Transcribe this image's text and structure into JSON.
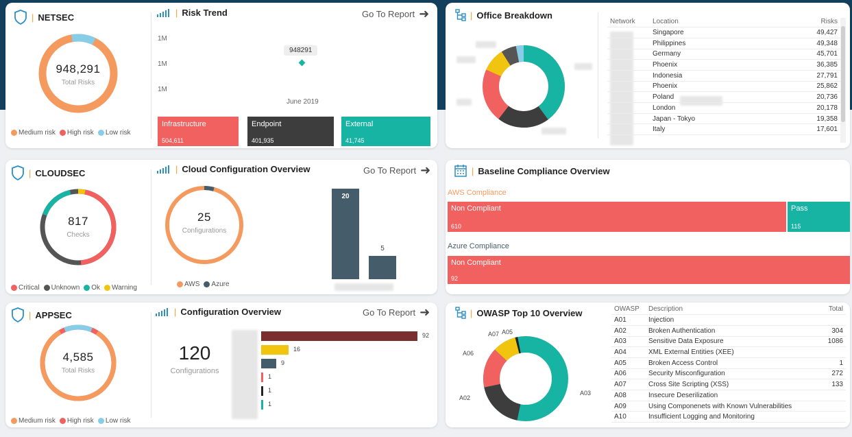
{
  "colors": {
    "medium": "#f59a5e",
    "high": "#f0615f",
    "low": "#87cde8",
    "dark": "#3d3d3d",
    "teal": "#17b3a3",
    "yellow": "#f1c40f",
    "slate": "#455d6b",
    "maroon": "#7b2e2e",
    "orange": "#f59a5e"
  },
  "netsec": {
    "title": "NETSEC",
    "total": "948,291",
    "total_label": "Total Risks",
    "legend": [
      "Medium risk",
      "High risk",
      "Low risk"
    ]
  },
  "risk_trend": {
    "title": "Risk Trend",
    "go_to_report": "Go To Report",
    "y_ticks": [
      "1M",
      "1M",
      "1M"
    ],
    "point_label": "948291",
    "x_label": "June 2019",
    "tiles": [
      {
        "label": "Infrastructure",
        "value": "504,611"
      },
      {
        "label": "Endpoint",
        "value": "401,935"
      },
      {
        "label": "External",
        "value": "41,745"
      }
    ]
  },
  "office": {
    "title": "Office Breakdown",
    "columns": [
      "Network",
      "Location",
      "Risks"
    ],
    "rows": [
      {
        "location": "Singapore",
        "risks": "49,427"
      },
      {
        "location": "Philippines",
        "risks": "49,348"
      },
      {
        "location": "Germany",
        "risks": "45,701"
      },
      {
        "location": "Phoenix",
        "risks": "36,385"
      },
      {
        "location": "Indonesia",
        "risks": "27,791"
      },
      {
        "location": "Phoenix",
        "risks": "25,862"
      },
      {
        "location": "Poland",
        "risks": "20,736"
      },
      {
        "location": "London",
        "risks": "20,178"
      },
      {
        "location": "Japan - Tokyo",
        "risks": "19,358"
      },
      {
        "location": "Italy",
        "risks": "17,601"
      }
    ]
  },
  "cloudsec": {
    "title": "CLOUDSEC",
    "total": "817",
    "total_label": "Checks",
    "legend": [
      "Critical",
      "Unknown",
      "Ok",
      "Warning"
    ]
  },
  "cloud_config": {
    "title": "Cloud Configuration Overview",
    "go_to_report": "Go To Report",
    "total": "25",
    "total_label": "Configurations",
    "legend": [
      "AWS",
      "Azure"
    ],
    "bar_values": [
      "20",
      "5"
    ]
  },
  "baseline": {
    "title": "Baseline Compliance Overview",
    "aws_label": "AWS Compliance",
    "aws_bars": [
      {
        "label": "Non Compliant",
        "value": "610"
      },
      {
        "label": "Pass",
        "value": "115"
      }
    ],
    "azure_label": "Azure Compliance",
    "azure_bars": [
      {
        "label": "Non Compliant",
        "value": "92"
      }
    ]
  },
  "appsec": {
    "title": "APPSEC",
    "total": "4,585",
    "total_label": "Total Risks",
    "legend": [
      "Medium risk",
      "High risk",
      "Low risk"
    ]
  },
  "config_overview": {
    "title": "Configuration Overview",
    "go_to_report": "Go To Report",
    "total": "120",
    "total_label": "Configurations",
    "bar_values": [
      "92",
      "16",
      "9",
      "1",
      "1",
      "1"
    ]
  },
  "owasp": {
    "title": "OWASP Top 10 Overview",
    "columns": [
      "OWASP",
      "Description",
      "Total"
    ],
    "donut_labels": [
      "A07",
      "A05",
      "A06",
      "A02",
      "A03"
    ],
    "rows": [
      {
        "id": "A01",
        "desc": "Injection",
        "total": ""
      },
      {
        "id": "A02",
        "desc": "Broken Authentication",
        "total": "304"
      },
      {
        "id": "A03",
        "desc": "Sensitive Data Exposure",
        "total": "1086"
      },
      {
        "id": "A04",
        "desc": "XML External Entities (XEE)",
        "total": ""
      },
      {
        "id": "A05",
        "desc": "Broken Access Control",
        "total": "1"
      },
      {
        "id": "A06",
        "desc": "Security Misconfiguration",
        "total": "272"
      },
      {
        "id": "A07",
        "desc": "Cross Site Scripting (XSS)",
        "total": "133"
      },
      {
        "id": "A08",
        "desc": "Insecure Deserilization",
        "total": ""
      },
      {
        "id": "A09",
        "desc": "Using Componenets with Known Vulnerabilities",
        "total": ""
      },
      {
        "id": "A10",
        "desc": "Insufficient Logging and Monitoring",
        "total": ""
      }
    ]
  }
}
